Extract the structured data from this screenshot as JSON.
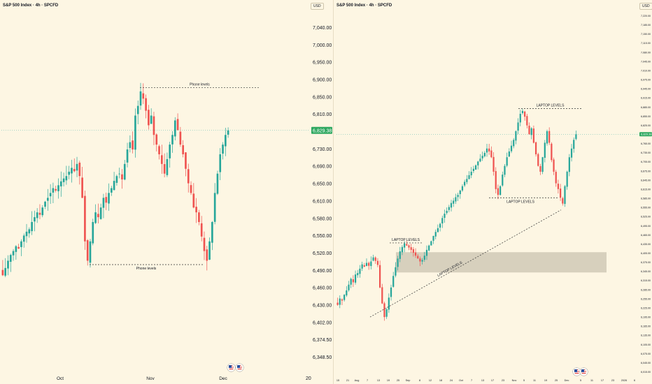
{
  "theme": {
    "background": "#fdf6e3",
    "up": "#26a69a",
    "down": "#ef5350",
    "text": "#131722",
    "zone": "#a9a18f"
  },
  "left": {
    "title": "S&P 500 Index · 4h · SPCFD",
    "currency_label": "USD",
    "current_price_label": "6,829.38",
    "price_ticks": [
      "7,040.00",
      "7,000.00",
      "6,950.00",
      "6,900.00",
      "6,850.00",
      "6,810.00",
      "6,770.00",
      "6,730.00",
      "6,690.00",
      "6,650.00",
      "6,610.00",
      "6,580.00",
      "6,550.00",
      "6,520.00",
      "6,490.00",
      "6,460.00",
      "6,430.00",
      "6,402.00",
      "6,374.50",
      "6,348.50"
    ],
    "time_labels": [
      "Oct",
      "Nov",
      "Dec"
    ],
    "corner_label": "20",
    "annotations": [
      "Phone levels",
      "Phone levels"
    ]
  },
  "right": {
    "title": "S&P 500 Index · 4h · SPCFD",
    "currency_label": "USD",
    "current_price_label": "6,829.38",
    "price_ticks": [
      "7,220.00",
      "7,185.00",
      "7,150.00",
      "7,115.00",
      "7,080.00",
      "7,045.00",
      "7,010.00",
      "6,975.00",
      "6,945.00",
      "6,915.00",
      "6,885.00",
      "6,855.00",
      "6,825.00",
      "6,795.00",
      "6,765.00",
      "6,735.00",
      "6,705.00",
      "6,675.00",
      "6,645.00",
      "6,615.00",
      "6,585.00",
      "6,555.00",
      "6,525.00",
      "6,495.00",
      "6,465.00",
      "6,435.00",
      "6,405.00",
      "6,375.00",
      "6,345.00",
      "6,315.00",
      "6,285.00",
      "6,255.00",
      "6,225.00",
      "6,195.00",
      "6,165.00",
      "6,135.00",
      "6,105.00",
      "6,075.00",
      "6,045.00",
      "6,015.00"
    ],
    "time_labels": [
      "15",
      "21",
      "Aug",
      "7",
      "13",
      "19",
      "25",
      "Sep",
      "8",
      "12",
      "18",
      "24",
      "Oct",
      "7",
      "13",
      "17",
      "23",
      "Nov",
      "5",
      "11",
      "19",
      "25",
      "Dec",
      "5",
      "11",
      "17",
      "23",
      "2026",
      "6"
    ],
    "annotations": [
      "LAPTOP LEVELS",
      "LAPTOP LEVELS",
      "LAPTOP LEVELS",
      "LAPTOP LEVELS"
    ]
  },
  "chart_data": [
    {
      "type": "candlestick",
      "title": "S&P 500 Index · 4h · SPCFD",
      "symbol": "SPCFD",
      "timeframe": "4h",
      "ylim": [
        6348.5,
        7070
      ],
      "x_labels": [
        "Oct",
        "Nov",
        "Dec"
      ],
      "last_price": 6829.38,
      "horizontal_levels": [
        {
          "label": "Phone levels",
          "price": 6918
        },
        {
          "label": "Phone levels",
          "price": 6552
        }
      ],
      "closes": [
        6530,
        6545,
        6560,
        6572,
        6580,
        6590,
        6585,
        6600,
        6612,
        6620,
        6625,
        6640,
        6650,
        6660,
        6655,
        6670,
        6682,
        6690,
        6700,
        6710,
        6705,
        6716,
        6724,
        6730,
        6735,
        6744,
        6752,
        6745,
        6760,
        6735,
        6690,
        6600,
        6560,
        6600,
        6640,
        6660,
        6650,
        6670,
        6690,
        6680,
        6700,
        6710,
        6725,
        6735,
        6740,
        6728,
        6760,
        6790,
        6805,
        6790,
        6860,
        6880,
        6910,
        6895,
        6870,
        6840,
        6860,
        6820,
        6800,
        6780,
        6760,
        6740,
        6770,
        6800,
        6820,
        6850,
        6830,
        6800,
        6780,
        6750,
        6720,
        6700,
        6670,
        6660,
        6640,
        6610,
        6580,
        6560,
        6600,
        6640,
        6700,
        6740,
        6780,
        6800,
        6820,
        6829.38
      ]
    },
    {
      "type": "candlestick",
      "title": "S&P 500 Index · 4h · SPCFD",
      "symbol": "SPCFD",
      "timeframe": "4h",
      "ylim": [
        6015,
        7240
      ],
      "x_labels": [
        "15",
        "21",
        "Aug",
        "7",
        "13",
        "19",
        "25",
        "Sep",
        "8",
        "12",
        "18",
        "24",
        "Oct",
        "7",
        "13",
        "17",
        "23",
        "Nov",
        "5",
        "11",
        "19",
        "25",
        "Dec",
        "5",
        "11",
        "17",
        "23",
        "2026",
        "6"
      ],
      "last_price": 6829.38,
      "horizontal_levels": [
        {
          "label": "LAPTOP LEVELS",
          "price": 6918
        },
        {
          "label": "LAPTOP LEVELS",
          "price": 6610
        },
        {
          "label": "LAPTOP LEVELS",
          "price": 6454
        }
      ],
      "trendlines": [
        {
          "label": "LAPTOP LEVELS",
          "from": 6198,
          "to": 6568
        }
      ],
      "zones": [
        {
          "price_top": 6422,
          "price_bottom": 6352
        }
      ],
      "closes": [
        6240,
        6262,
        6255,
        6275,
        6290,
        6310,
        6330,
        6318,
        6345,
        6350,
        6365,
        6380,
        6372,
        6385,
        6375,
        6390,
        6404,
        6392,
        6378,
        6300,
        6245,
        6198,
        6225,
        6265,
        6300,
        6340,
        6370,
        6400,
        6425,
        6440,
        6452,
        6445,
        6438,
        6430,
        6420,
        6410,
        6400,
        6390,
        6395,
        6410,
        6430,
        6445,
        6460,
        6478,
        6492,
        6505,
        6520,
        6540,
        6555,
        6565,
        6578,
        6592,
        6600,
        6612,
        6620,
        6635,
        6650,
        6665,
        6675,
        6688,
        6700,
        6710,
        6722,
        6735,
        6745,
        6755,
        6765,
        6780,
        6770,
        6750,
        6700,
        6640,
        6620,
        6650,
        6690,
        6720,
        6750,
        6770,
        6790,
        6810,
        6840,
        6870,
        6900,
        6910,
        6890,
        6860,
        6830,
        6850,
        6800,
        6760,
        6720,
        6700,
        6750,
        6800,
        6840,
        6800,
        6740,
        6700,
        6660,
        6640,
        6610,
        6590,
        6650,
        6700,
        6750,
        6780,
        6810,
        6829.38
      ]
    }
  ]
}
